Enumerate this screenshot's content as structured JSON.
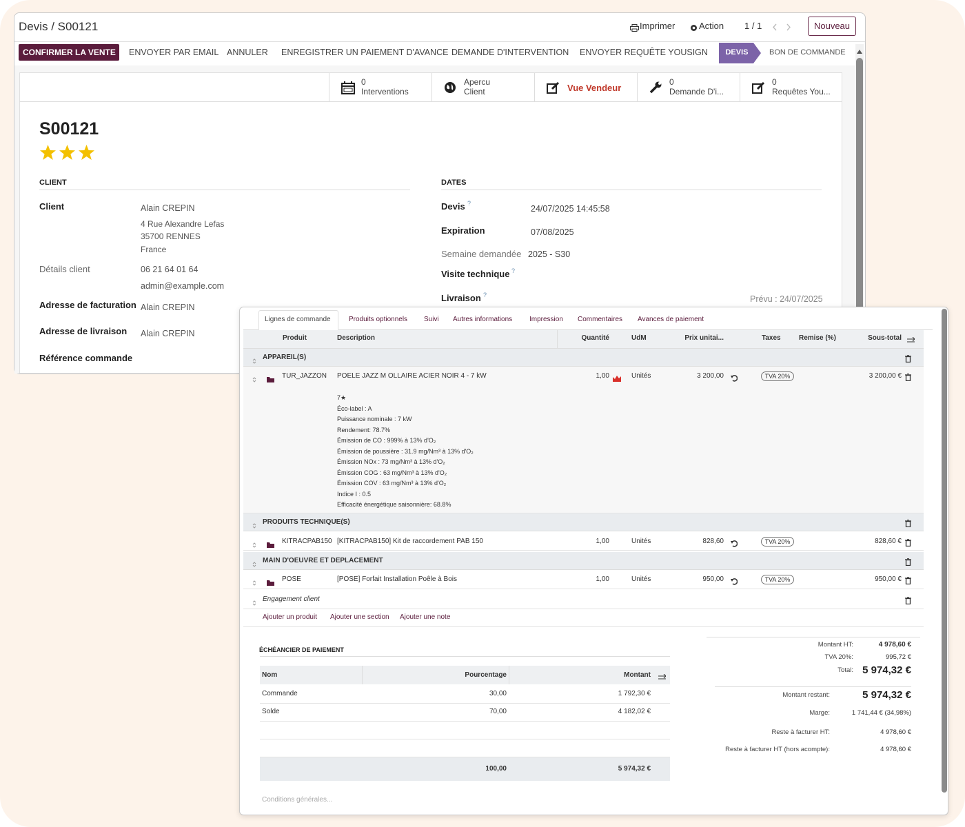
{
  "header": {
    "breadcrumb": "Devis / S00121",
    "print": "Imprimer",
    "action": "Action",
    "pager": "1 / 1",
    "new": "Nouveau"
  },
  "action_buttons": [
    "CONFIRMER LA VENTE",
    "ENVOYER PAR EMAIL",
    "ANNULER",
    "ENREGISTRER UN PAIEMENT D'AVANCE",
    "DEMANDE D'INTERVENTION",
    "ENVOYER REQUÊTE YOUSIGN"
  ],
  "status_bar": [
    "DEVIS",
    "BON DE COMMANDE"
  ],
  "smart_buttons": [
    {
      "lines": [
        "0",
        "Interventions"
      ]
    },
    {
      "lines": [
        "Apercu",
        "Client"
      ]
    },
    {
      "lines": [
        "Vue Vendeur"
      ]
    },
    {
      "lines": [
        "0",
        "Demande D'i..."
      ]
    },
    {
      "lines": [
        "0",
        "Requêtes You..."
      ]
    }
  ],
  "record": {
    "name": "S00121"
  },
  "client": {
    "title": "CLIENT",
    "fields": [
      {
        "label": "Client",
        "lines": [
          "Alain CREPIN",
          "4 Rue Alexandre Lefas",
          "35700 RENNES",
          "France"
        ]
      },
      {
        "label": "Détails client",
        "lines": [
          "06 21 64 01 64",
          "admin@example.com"
        ]
      },
      {
        "label": "Adresse de facturation",
        "lines": [
          "Alain CREPIN"
        ]
      },
      {
        "label": "Adresse de livraison",
        "lines": [
          "Alain CREPIN"
        ]
      },
      {
        "label": "Référence commande",
        "lines": []
      }
    ]
  },
  "dates": {
    "title": "DATES",
    "fields": [
      {
        "label": "Devis",
        "help": "?",
        "value": "24/07/2025 14:45:58"
      },
      {
        "label": "Expiration",
        "value": "07/08/2025"
      },
      {
        "label": "Semaine demandée",
        "value": "2025 - S30"
      },
      {
        "label": "Visite technique",
        "help": "?"
      },
      {
        "label": "Livraison",
        "help": "?",
        "value": "Prévu : 24/07/2025"
      }
    ]
  },
  "order_lines": {
    "tabs": [
      "Lignes de commande",
      "Produits optionnels",
      "Suivi",
      "Autres informations",
      "Impression",
      "Commentaires",
      "Avances de paiement"
    ],
    "columns": [
      "Produit",
      "Description",
      "Quantité",
      "UdM",
      "Prix unitai...",
      "Taxes",
      "Remise (%)",
      "Sous-total"
    ],
    "sections": [
      {
        "name": "APPAREIL(S)",
        "lines": [
          {
            "product": "TUR_JAZZON",
            "description": [
              "POELE JAZZ M OLLAIRE ACIER NOIR 4 - 7 kW",
              "7★",
              "Éco-label : A",
              "Puissance nominale : 7 kW",
              "Rendement: 78.7%",
              "Émission de CO : 999% à 13% d'O₂",
              "Émission de poussière : 31.9 mg/Nm³ à 13% d'O₂",
              "Émission NOx : 73 mg/Nm³ à 13% d'O₂",
              "Émission COG : 63 mg/Nm³ à 13% d'O₂",
              "Émission COV : 63 mg/Nm³ à 13% d'O₂",
              "Indice I : 0.5",
              "Efficacité énergétique saisonnière: 68.8%"
            ],
            "quantity": "1,00",
            "uom": "Unités",
            "price": "3 200,00",
            "taxes": "TVA 20%",
            "subtotal": "3 200,00 €"
          }
        ]
      },
      {
        "name": "PRODUITS TECHNIQUE(S)",
        "lines": [
          {
            "product": "KITRACPAB150",
            "description": [
              "[KITRACPAB150] Kit de raccordement PAB 150"
            ],
            "quantity": "1,00",
            "uom": "Unités",
            "price": "828,60",
            "taxes": "TVA 20%",
            "subtotal": "828,60 €"
          }
        ]
      },
      {
        "name": "MAIN D'OEUVRE ET DEPLACEMENT",
        "lines": [
          {
            "product": "POSE",
            "description": [
              "[POSE] Forfait Installation Poêle à Bois"
            ],
            "quantity": "1,00",
            "uom": "Unités",
            "price": "950,00",
            "taxes": "TVA 20%",
            "subtotal": "950,00 €"
          }
        ]
      }
    ],
    "note": "Engagement client",
    "add_links": [
      "Ajouter un produit",
      "Ajouter une section",
      "Ajouter une note"
    ]
  },
  "payment_schedule": {
    "title": "ÉCHÉANCIER DE PAIEMENT",
    "columns": [
      "Nom",
      "Pourcentage",
      "Montant"
    ],
    "rows": [
      [
        "Commande",
        "30,00",
        "1 792,30 €"
      ],
      [
        "Solde",
        "70,00",
        "4 182,02 €"
      ]
    ],
    "total": [
      "100,00",
      "5 974,32 €"
    ]
  },
  "terms_placeholder": "Conditions générales...",
  "totals": [
    {
      "label": "Montant HT:",
      "value": "4 978,60 €"
    },
    {
      "label": "TVA 20%:",
      "value": "995,72 €"
    },
    {
      "label": "Total:",
      "value": "5 974,32 €"
    },
    {
      "label": "Montant restant:",
      "value": "5 974,32 €"
    },
    {
      "label": "Marge:",
      "value": "1 741,44 € (34,98%)"
    },
    {
      "label": "Reste à facturer HT:",
      "value": "4 978,60 €"
    },
    {
      "label": "Reste à facturer HT (hors acompte):",
      "value": "4 978,60 €"
    }
  ]
}
